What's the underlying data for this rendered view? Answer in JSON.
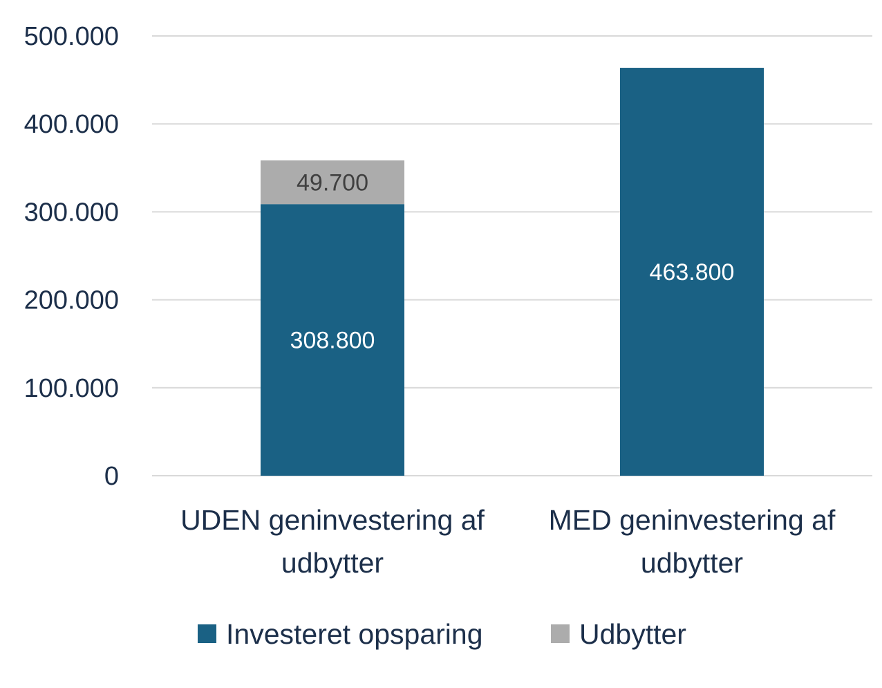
{
  "chart_data": {
    "type": "bar",
    "stacked": true,
    "categories": [
      [
        "UDEN geninvestering af",
        "udbytter"
      ],
      [
        "MED geninvestering af",
        "udbytter"
      ]
    ],
    "series": [
      {
        "name": "Investeret opsparing",
        "color": "#1a6184",
        "label_color": "#ffffff",
        "values": [
          308800,
          463800
        ],
        "labels": [
          "308.800",
          "463.800"
        ]
      },
      {
        "name": "Udbytter",
        "color": "#acacac",
        "label_color": "#404040",
        "values": [
          49700,
          0
        ],
        "labels": [
          "49.700",
          ""
        ]
      }
    ],
    "ylim": [
      0,
      500000
    ],
    "y_ticks": [
      {
        "value": 0,
        "label": "0"
      },
      {
        "value": 100000,
        "label": "100.000"
      },
      {
        "value": 200000,
        "label": "200.000"
      },
      {
        "value": 300000,
        "label": "300.000"
      },
      {
        "value": 400000,
        "label": "400.000"
      },
      {
        "value": 500000,
        "label": "500.000"
      }
    ],
    "grid": true,
    "legend_position": "bottom",
    "axis_text_color": "#1c2f4a",
    "grid_color": "#d9d9d9"
  }
}
